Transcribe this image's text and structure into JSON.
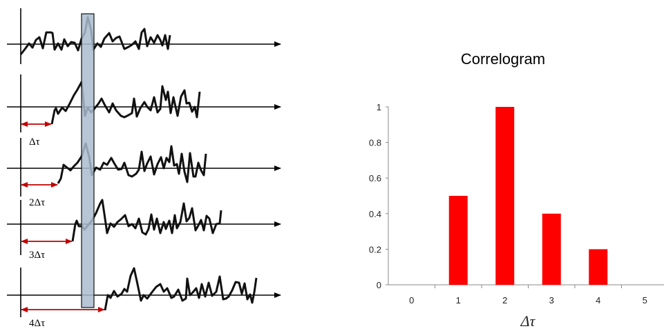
{
  "lag_panel": {
    "lag_labels": [
      "Δτ",
      "2Δτ",
      "3Δτ",
      "4Δτ"
    ],
    "colors": {
      "signal": "#111111",
      "window": "#a9bccf",
      "lag_arrow": "#c00000"
    }
  },
  "chart_data": {
    "type": "bar",
    "title": "Correlogram",
    "xlabel": "Δτ",
    "ylabel": "",
    "categories": [
      "0",
      "1",
      "2",
      "3",
      "4",
      "5"
    ],
    "values": [
      0,
      0.5,
      1,
      0.4,
      0.2,
      0
    ],
    "ylim": [
      0,
      1
    ],
    "yticks": [
      "0",
      "0.2",
      "0.4",
      "0.6",
      "0.8",
      "1"
    ],
    "bar_color": "#ff0000",
    "grid": false,
    "legend": "none"
  }
}
